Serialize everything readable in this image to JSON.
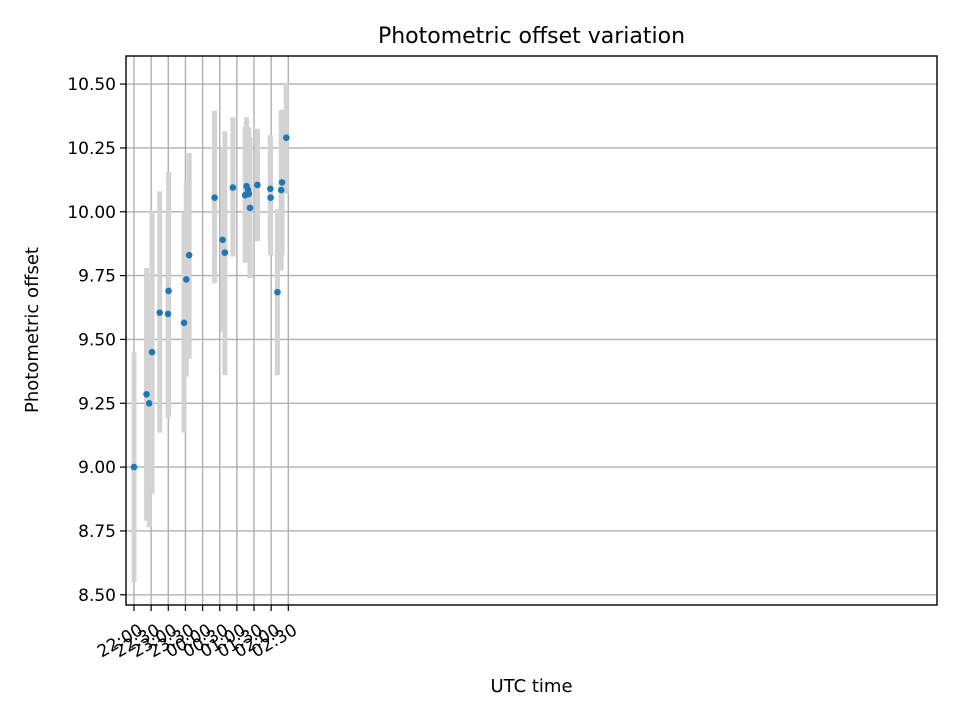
{
  "chart_data": {
    "type": "scatter",
    "title": "Photometric offset variation",
    "xlabel": "UTC time",
    "ylabel": "Photometric offset",
    "grid": true,
    "xlim": [
      -14,
      1405
    ],
    "ylim": [
      8.46,
      10.61
    ],
    "x_units": "minutes after 22:00 UTC",
    "x_ticks": [
      0,
      30,
      60,
      90,
      120,
      150,
      180,
      210,
      240,
      270
    ],
    "x_tick_labels": [
      "22:00",
      "22:30",
      "23:00",
      "23:30",
      "00:00",
      "00:30",
      "01:00",
      "01:30",
      "02:00",
      "02:30"
    ],
    "y_ticks": [
      8.5,
      8.75,
      9.0,
      9.25,
      9.5,
      9.75,
      10.0,
      10.25,
      10.5
    ],
    "y_tick_labels": [
      "8.50",
      "8.75",
      "9.00",
      "9.25",
      "9.50",
      "9.75",
      "10.00",
      "10.25",
      "10.50"
    ],
    "marker_color": "#1f77b4",
    "errorbar_color": "#d3d3d3",
    "points": [
      {
        "x": 0,
        "y": 9.0,
        "lo": 8.55,
        "hi": 9.45
      },
      {
        "x": 22,
        "y": 9.285,
        "lo": 8.79,
        "hi": 9.78
      },
      {
        "x": 26.5,
        "y": 9.25,
        "lo": 8.765,
        "hi": 9.735
      },
      {
        "x": 31.5,
        "y": 9.45,
        "lo": 8.895,
        "hi": 10.005
      },
      {
        "x": 45,
        "y": 9.605,
        "lo": 9.135,
        "hi": 10.08
      },
      {
        "x": 59.5,
        "y": 9.6,
        "lo": 9.19,
        "hi": 10.01
      },
      {
        "x": 60.5,
        "y": 9.69,
        "lo": 9.2,
        "hi": 10.155
      },
      {
        "x": 87.5,
        "y": 9.565,
        "lo": 9.135,
        "hi": 9.995
      },
      {
        "x": 91.5,
        "y": 9.735,
        "lo": 9.355,
        "hi": 10.115
      },
      {
        "x": 96.5,
        "y": 9.83,
        "lo": 9.425,
        "hi": 10.23
      },
      {
        "x": 141,
        "y": 10.055,
        "lo": 9.72,
        "hi": 10.395
      },
      {
        "x": 155,
        "y": 9.89,
        "lo": 9.53,
        "hi": 10.25
      },
      {
        "x": 159,
        "y": 9.84,
        "lo": 9.36,
        "hi": 10.315
      },
      {
        "x": 173,
        "y": 10.095,
        "lo": 9.825,
        "hi": 10.37
      },
      {
        "x": 194.5,
        "y": 10.065,
        "lo": 9.8,
        "hi": 10.335
      },
      {
        "x": 197,
        "y": 10.1,
        "lo": 9.83,
        "hi": 10.37
      },
      {
        "x": 199.5,
        "y": 10.085,
        "lo": 9.84,
        "hi": 10.33
      },
      {
        "x": 201,
        "y": 10.07,
        "lo": 9.815,
        "hi": 10.33
      },
      {
        "x": 203,
        "y": 10.015,
        "lo": 9.74,
        "hi": 10.29
      },
      {
        "x": 216,
        "y": 10.105,
        "lo": 9.885,
        "hi": 10.325
      },
      {
        "x": 238.5,
        "y": 10.09,
        "lo": 9.87,
        "hi": 10.3
      },
      {
        "x": 239,
        "y": 10.055,
        "lo": 9.83,
        "hi": 10.285
      },
      {
        "x": 251,
        "y": 9.685,
        "lo": 9.36,
        "hi": 10.01
      },
      {
        "x": 257.5,
        "y": 10.085,
        "lo": 9.77,
        "hi": 10.395
      },
      {
        "x": 259,
        "y": 10.115,
        "lo": 9.83,
        "hi": 10.4
      },
      {
        "x": 266.5,
        "y": 10.29,
        "lo": 10.07,
        "hi": 10.505
      }
    ]
  }
}
